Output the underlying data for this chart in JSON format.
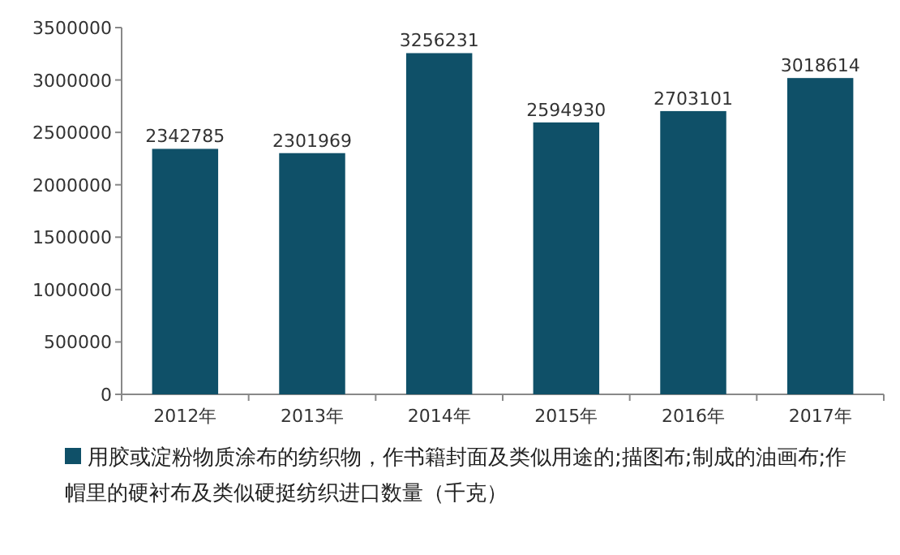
{
  "chart_data": {
    "type": "bar",
    "categories": [
      "2012年",
      "2013年",
      "2014年",
      "2015年",
      "2016年",
      "2017年"
    ],
    "series": [
      {
        "name": "用胶或淀粉物质涂布的纺织物，作书籍封面及类似用途的;描图布;制成的油画布;作帽里的硬衬布及类似硬挺纺织进口数量（千克）",
        "color": "#0f5068",
        "values": [
          2342785,
          2301969,
          3256231,
          2594930,
          2703101,
          3018614
        ]
      }
    ],
    "ylim": [
      0,
      3500000
    ],
    "yticks": [
      0,
      500000,
      1000000,
      1500000,
      2000000,
      2500000,
      3000000,
      3500000
    ],
    "data_labels": true,
    "legend": "bottom"
  }
}
